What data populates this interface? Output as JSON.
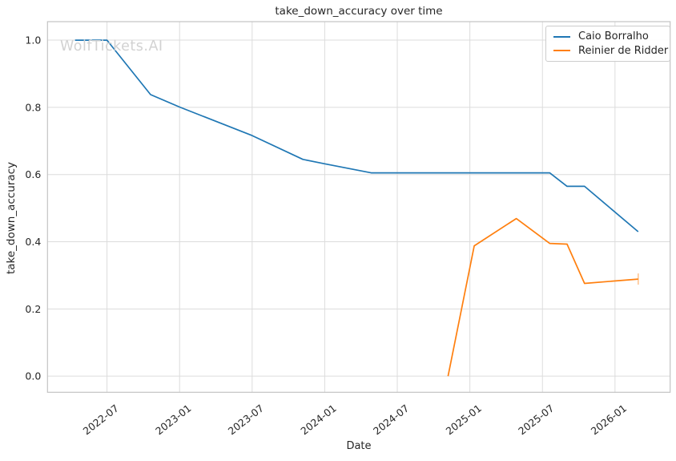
{
  "chart_data": {
    "type": "line",
    "title": "take_down_accuracy over time",
    "xlabel": "Date",
    "ylabel": "take_down_accuracy",
    "watermark": "WolfTickets.AI",
    "grid": true,
    "legend_position": "upper right",
    "xlim": [
      2022.09,
      2026.38
    ],
    "ylim": [
      -0.048,
      1.055
    ],
    "x_ticks": {
      "positions": [
        2022.5,
        2023.0,
        2023.5,
        2024.0,
        2024.5,
        2025.0,
        2025.5,
        2026.0
      ],
      "labels": [
        "2022-07",
        "2023-01",
        "2023-07",
        "2024-01",
        "2024-07",
        "2025-01",
        "2025-07",
        "2026-01"
      ]
    },
    "y_ticks": {
      "positions": [
        0.0,
        0.2,
        0.4,
        0.6,
        0.8,
        1.0
      ],
      "labels": [
        "0.0",
        "0.2",
        "0.4",
        "0.6",
        "0.8",
        "1.0"
      ]
    },
    "series": [
      {
        "name": "Caio Borralho",
        "color": "#1f77b4",
        "end_tick": false,
        "dates": [
          "2022-04",
          "2022-07",
          "2022-10",
          "2023-01",
          "2023-07",
          "2023-11",
          "2024-01",
          "2024-04",
          "2025-07",
          "2025-09",
          "2025-10",
          "2026-03"
        ],
        "x": [
          2022.28,
          2022.5,
          2022.8,
          2023.0,
          2023.5,
          2023.85,
          2024.0,
          2024.32,
          2025.55,
          2025.67,
          2025.79,
          2026.16
        ],
        "y": [
          1.0,
          1.0,
          0.838,
          0.801,
          0.716,
          0.645,
          0.632,
          0.605,
          0.605,
          0.565,
          0.565,
          0.43
        ]
      },
      {
        "name": "Reinier de Ridder",
        "color": "#ff7f0e",
        "end_tick": true,
        "dates": [
          "2024-11",
          "2025-01",
          "2025-05",
          "2025-07",
          "2025-09",
          "2025-10",
          "2026-03"
        ],
        "x": [
          2024.85,
          2025.03,
          2025.32,
          2025.55,
          2025.67,
          2025.79,
          2026.16
        ],
        "y": [
          0.0,
          0.388,
          0.469,
          0.395,
          0.393,
          0.276,
          0.289
        ]
      }
    ]
  },
  "styles": {
    "grid_color": "#dcdcdc",
    "spine_color": "#c3c3c3",
    "tick_label_color": "#262626",
    "title_color": "#262626",
    "watermark_color": "#d2d2d2",
    "legend_border_color": "#cccccc"
  }
}
